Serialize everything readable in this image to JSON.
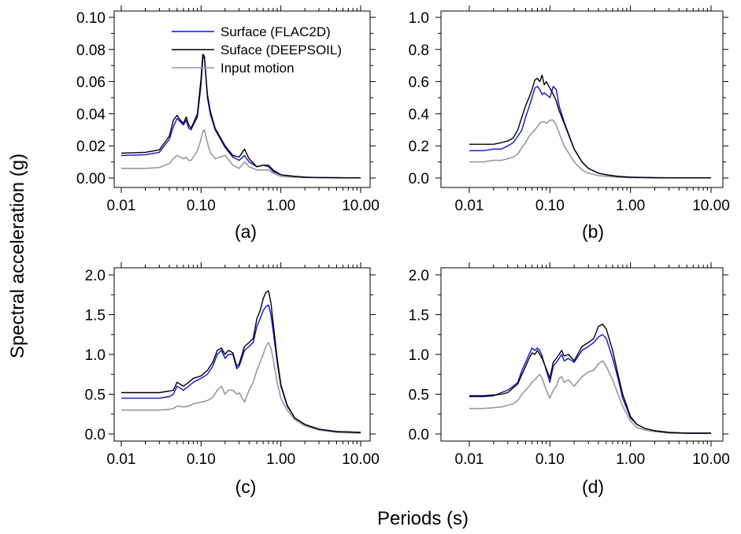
{
  "figure": {
    "ylabel": "Spectral acceleration (g)",
    "xlabel": "Periods (s)"
  },
  "legend": {
    "items": [
      {
        "label": "Surface (FLAC2D)",
        "color": "#1010d0"
      },
      {
        "label": "Suface (DEEPSOIL)",
        "color": "#000000"
      },
      {
        "label": "Input motion",
        "color": "#999999"
      }
    ]
  },
  "chart_data": [
    {
      "type": "line",
      "panel_label": "(a)",
      "x_scale": "log",
      "xlim": [
        0.01,
        10
      ],
      "ylim": [
        0,
        0.1
      ],
      "xticks": [
        "0.01",
        "0.10",
        "1.00",
        "10.00"
      ],
      "yticks": [
        "0.00",
        "0.02",
        "0.04",
        "0.06",
        "0.08",
        "0.10"
      ],
      "x": [
        0.01,
        0.02,
        0.03,
        0.04,
        0.045,
        0.05,
        0.055,
        0.06,
        0.065,
        0.07,
        0.075,
        0.08,
        0.09,
        0.1,
        0.105,
        0.11,
        0.12,
        0.13,
        0.15,
        0.2,
        0.25,
        0.3,
        0.35,
        0.4,
        0.5,
        0.6,
        0.7,
        0.8,
        1.0,
        1.5,
        2,
        3,
        5,
        10
      ],
      "series": [
        {
          "name": "Surface (FLAC2D)",
          "color": "#1010d0",
          "values": [
            0.014,
            0.0145,
            0.016,
            0.024,
            0.032,
            0.037,
            0.035,
            0.033,
            0.036,
            0.031,
            0.03,
            0.033,
            0.038,
            0.058,
            0.074,
            0.076,
            0.05,
            0.04,
            0.03,
            0.019,
            0.013,
            0.011,
            0.014,
            0.01,
            0.007,
            0.008,
            0.007,
            0.004,
            0.002,
            0.001,
            0.0005,
            0.0003,
            0.0002,
            0.0001
          ]
        },
        {
          "name": "Suface (DEEPSOIL)",
          "color": "#000000",
          "values": [
            0.0155,
            0.016,
            0.0175,
            0.026,
            0.036,
            0.039,
            0.036,
            0.034,
            0.038,
            0.033,
            0.031,
            0.034,
            0.04,
            0.062,
            0.077,
            0.076,
            0.052,
            0.042,
            0.031,
            0.02,
            0.014,
            0.013,
            0.018,
            0.012,
            0.007,
            0.008,
            0.008,
            0.005,
            0.002,
            0.001,
            0.0005,
            0.0003,
            0.0002,
            0.0001
          ]
        },
        {
          "name": "Input motion",
          "color": "#999999",
          "values": [
            0.006,
            0.006,
            0.0065,
            0.009,
            0.012,
            0.014,
            0.013,
            0.012,
            0.013,
            0.011,
            0.011,
            0.013,
            0.017,
            0.024,
            0.029,
            0.03,
            0.022,
            0.016,
            0.012,
            0.014,
            0.008,
            0.006,
            0.01,
            0.007,
            0.005,
            0.005,
            0.005,
            0.003,
            0.001,
            0.0005,
            0.0003,
            0.0002,
            0.0001,
            0.0001
          ]
        }
      ]
    },
    {
      "type": "line",
      "panel_label": "(b)",
      "x_scale": "log",
      "xlim": [
        0.01,
        10
      ],
      "ylim": [
        0,
        1.0
      ],
      "xticks": [
        "0.01",
        "0.10",
        "1.00",
        "10.00"
      ],
      "yticks": [
        "0.0",
        "0.2",
        "0.4",
        "0.6",
        "0.8",
        "1.0"
      ],
      "x": [
        0.01,
        0.015,
        0.02,
        0.025,
        0.03,
        0.035,
        0.04,
        0.045,
        0.05,
        0.055,
        0.06,
        0.065,
        0.07,
        0.075,
        0.08,
        0.085,
        0.09,
        0.1,
        0.11,
        0.12,
        0.13,
        0.15,
        0.2,
        0.25,
        0.3,
        0.4,
        0.5,
        0.7,
        1.0,
        2,
        5,
        10
      ],
      "series": [
        {
          "name": "Surface (FLAC2D)",
          "color": "#1010d0",
          "values": [
            0.17,
            0.17,
            0.18,
            0.18,
            0.2,
            0.22,
            0.26,
            0.3,
            0.38,
            0.44,
            0.5,
            0.56,
            0.57,
            0.55,
            0.52,
            0.53,
            0.52,
            0.5,
            0.57,
            0.55,
            0.45,
            0.35,
            0.18,
            0.1,
            0.06,
            0.03,
            0.02,
            0.01,
            0.005,
            0.002,
            0.001,
            0.001
          ]
        },
        {
          "name": "Suface (DEEPSOIL)",
          "color": "#000000",
          "values": [
            0.21,
            0.21,
            0.21,
            0.22,
            0.23,
            0.25,
            0.3,
            0.38,
            0.45,
            0.5,
            0.55,
            0.61,
            0.62,
            0.6,
            0.64,
            0.58,
            0.6,
            0.56,
            0.52,
            0.48,
            0.42,
            0.34,
            0.18,
            0.1,
            0.06,
            0.03,
            0.02,
            0.01,
            0.005,
            0.002,
            0.001,
            0.001
          ]
        },
        {
          "name": "Input motion",
          "color": "#999999",
          "values": [
            0.1,
            0.1,
            0.11,
            0.11,
            0.12,
            0.13,
            0.15,
            0.19,
            0.22,
            0.26,
            0.28,
            0.3,
            0.32,
            0.34,
            0.35,
            0.35,
            0.34,
            0.36,
            0.36,
            0.33,
            0.28,
            0.2,
            0.1,
            0.05,
            0.03,
            0.015,
            0.01,
            0.005,
            0.003,
            0.001,
            0.001,
            0.001
          ]
        }
      ]
    },
    {
      "type": "line",
      "panel_label": "(c)",
      "x_scale": "log",
      "xlim": [
        0.01,
        10
      ],
      "ylim": [
        0,
        2.0
      ],
      "xticks": [
        "0.01",
        "0.10",
        "1.00",
        "10.00"
      ],
      "yticks": [
        "0.0",
        "0.5",
        "1.0",
        "1.5",
        "2.0"
      ],
      "x": [
        0.01,
        0.02,
        0.03,
        0.04,
        0.045,
        0.05,
        0.06,
        0.07,
        0.08,
        0.1,
        0.12,
        0.14,
        0.16,
        0.18,
        0.2,
        0.22,
        0.25,
        0.28,
        0.3,
        0.35,
        0.4,
        0.45,
        0.5,
        0.55,
        0.6,
        0.65,
        0.7,
        0.75,
        0.8,
        0.9,
        1.0,
        1.2,
        1.5,
        2,
        3,
        5,
        10
      ],
      "series": [
        {
          "name": "Surface (FLAC2D)",
          "color": "#1010d0",
          "values": [
            0.45,
            0.45,
            0.45,
            0.47,
            0.5,
            0.6,
            0.55,
            0.6,
            0.65,
            0.7,
            0.75,
            0.85,
            1.0,
            1.05,
            0.95,
            1.0,
            1.0,
            0.82,
            0.85,
            1.05,
            1.1,
            1.15,
            1.35,
            1.45,
            1.55,
            1.6,
            1.62,
            1.5,
            1.3,
            0.9,
            0.6,
            0.35,
            0.2,
            0.12,
            0.06,
            0.03,
            0.02
          ]
        },
        {
          "name": "Suface (DEEPSOIL)",
          "color": "#000000",
          "values": [
            0.52,
            0.52,
            0.52,
            0.54,
            0.55,
            0.65,
            0.6,
            0.65,
            0.7,
            0.73,
            0.8,
            0.9,
            1.05,
            1.08,
            1.0,
            1.05,
            1.02,
            0.85,
            0.88,
            1.1,
            1.15,
            1.2,
            1.45,
            1.55,
            1.7,
            1.78,
            1.8,
            1.65,
            1.4,
            0.95,
            0.62,
            0.36,
            0.2,
            0.12,
            0.06,
            0.03,
            0.02
          ]
        },
        {
          "name": "Input motion",
          "color": "#999999",
          "values": [
            0.3,
            0.3,
            0.3,
            0.31,
            0.32,
            0.35,
            0.34,
            0.35,
            0.38,
            0.4,
            0.42,
            0.46,
            0.55,
            0.6,
            0.5,
            0.55,
            0.55,
            0.5,
            0.52,
            0.4,
            0.55,
            0.65,
            0.8,
            0.9,
            1.0,
            1.1,
            1.15,
            1.08,
            0.95,
            0.65,
            0.45,
            0.3,
            0.18,
            0.1,
            0.05,
            0.02,
            0.01
          ]
        }
      ]
    },
    {
      "type": "line",
      "panel_label": "(d)",
      "x_scale": "log",
      "xlim": [
        0.01,
        10
      ],
      "ylim": [
        0,
        2.0
      ],
      "xticks": [
        "0.01",
        "0.10",
        "1.00",
        "10.00"
      ],
      "yticks": [
        "0.0",
        "0.5",
        "1.0",
        "1.5",
        "2.0"
      ],
      "x": [
        0.01,
        0.015,
        0.02,
        0.025,
        0.03,
        0.035,
        0.04,
        0.045,
        0.05,
        0.055,
        0.06,
        0.065,
        0.07,
        0.075,
        0.08,
        0.09,
        0.1,
        0.11,
        0.12,
        0.13,
        0.14,
        0.15,
        0.17,
        0.2,
        0.25,
        0.3,
        0.35,
        0.4,
        0.45,
        0.5,
        0.6,
        0.7,
        0.8,
        1.0,
        1.2,
        1.5,
        2,
        3,
        5,
        10
      ],
      "series": [
        {
          "name": "Surface (FLAC2D)",
          "color": "#1010d0",
          "values": [
            0.47,
            0.47,
            0.48,
            0.52,
            0.55,
            0.6,
            0.65,
            0.8,
            0.9,
            1.0,
            1.08,
            1.05,
            1.08,
            1.05,
            0.98,
            0.8,
            0.65,
            0.85,
            0.9,
            0.95,
            1.0,
            0.92,
            0.95,
            0.9,
            1.05,
            1.1,
            1.15,
            1.22,
            1.25,
            1.2,
            0.95,
            0.7,
            0.45,
            0.2,
            0.12,
            0.07,
            0.04,
            0.02,
            0.01,
            0.01
          ]
        },
        {
          "name": "Suface (DEEPSOIL)",
          "color": "#000000",
          "values": [
            0.48,
            0.48,
            0.49,
            0.5,
            0.52,
            0.58,
            0.63,
            0.75,
            0.85,
            0.95,
            1.02,
            1.0,
            1.05,
            1.0,
            0.95,
            0.82,
            0.7,
            0.9,
            0.95,
            1.0,
            1.05,
            0.98,
            1.0,
            0.92,
            1.1,
            1.15,
            1.2,
            1.35,
            1.38,
            1.32,
            1.05,
            0.75,
            0.5,
            0.22,
            0.12,
            0.07,
            0.04,
            0.02,
            0.01,
            0.01
          ]
        },
        {
          "name": "Input motion",
          "color": "#999999",
          "values": [
            0.32,
            0.32,
            0.33,
            0.34,
            0.36,
            0.38,
            0.42,
            0.5,
            0.55,
            0.6,
            0.65,
            0.68,
            0.72,
            0.75,
            0.7,
            0.55,
            0.45,
            0.55,
            0.6,
            0.7,
            0.72,
            0.65,
            0.68,
            0.6,
            0.72,
            0.78,
            0.8,
            0.88,
            0.92,
            0.85,
            0.68,
            0.5,
            0.35,
            0.16,
            0.08,
            0.05,
            0.03,
            0.01,
            0.01,
            0.01
          ]
        }
      ]
    }
  ]
}
